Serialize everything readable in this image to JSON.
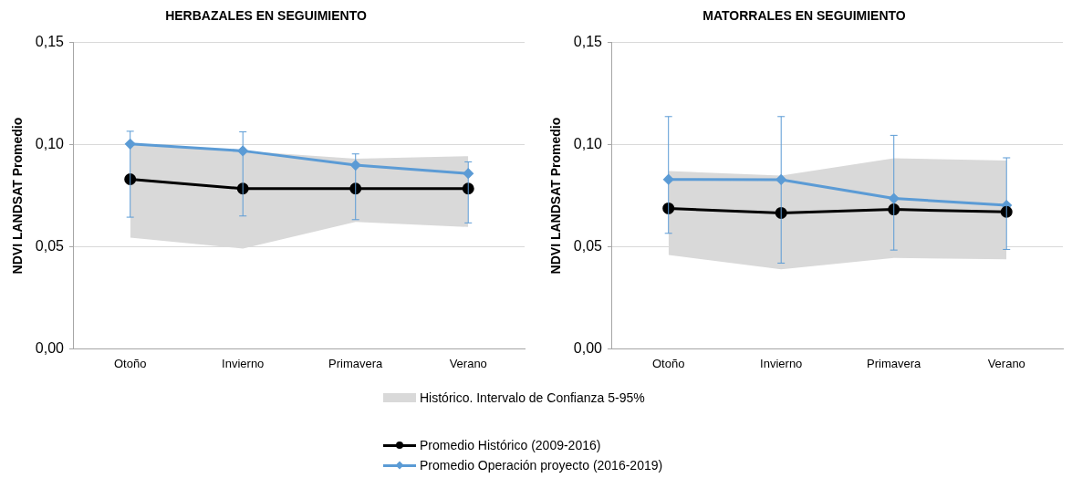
{
  "chart_data": [
    {
      "type": "line",
      "title": "HERBAZALES EN SEGUIMIENTO",
      "ylabel": "NDVI LANDSAT Promedio",
      "categories": [
        "Otoño",
        "Invierno",
        "Primavera",
        "Verano"
      ],
      "ylim": [
        0,
        0.15
      ],
      "yticks": [
        {
          "value": 0,
          "label": "0,00"
        },
        {
          "value": 0.05,
          "label": "0,05"
        },
        {
          "value": 0.1,
          "label": "0,10"
        },
        {
          "value": 0.15,
          "label": "0,15"
        }
      ],
      "grid": "y",
      "legend": "bottom",
      "annotations": [
        "Histórico. Intervalo de Confianza 5-95%"
      ],
      "series": [
        {
          "name": "Promedio Histórico (2009-2016)",
          "color": "#000000",
          "marker": "circle",
          "values": [
            0.0831,
            0.0785,
            0.0785,
            0.0785
          ],
          "lower": [
            0.0545,
            0.0491,
            0.0622,
            0.0597
          ],
          "upper": [
            0.1002,
            0.097,
            0.0932,
            0.0944
          ]
        },
        {
          "name": "Promedio Operación proyecto (2016-2019)",
          "color": "#5b9bd5",
          "marker": "diamond",
          "values": [
            0.1004,
            0.097,
            0.09,
            0.0859
          ],
          "errors": [
            [
              0.0645,
              0.1066
            ],
            [
              0.0651,
              0.1063
            ],
            [
              0.0633,
              0.0955
            ],
            [
              0.0617,
              0.0916
            ]
          ]
        }
      ]
    },
    {
      "type": "line",
      "title": "MATORRALES EN SEGUIMIENTO",
      "ylabel": "NDVI LANDSAT Promedio",
      "categories": [
        "Otoño",
        "Invierno",
        "Primavera",
        "Verano"
      ],
      "ylim": [
        0,
        0.15
      ],
      "yticks": [
        {
          "value": 0,
          "label": "0,00"
        },
        {
          "value": 0.05,
          "label": "0,05"
        },
        {
          "value": 0.1,
          "label": "0,10"
        },
        {
          "value": 0.15,
          "label": "0,15"
        }
      ],
      "grid": "y",
      "series": [
        {
          "color": "#000000",
          "marker": "circle",
          "values": [
            0.0688,
            0.0666,
            0.0683,
            0.0671
          ],
          "lower": [
            0.046,
            0.039,
            0.0445,
            0.0439
          ],
          "upper": [
            0.0871,
            0.0849,
            0.0934,
            0.0922
          ]
        },
        {
          "color": "#5b9bd5",
          "marker": "diamond",
          "values": [
            0.083,
            0.0829,
            0.0737,
            0.0703
          ],
          "errors": [
            [
              0.0566,
              0.1138
            ],
            [
              0.042,
              0.1138
            ],
            [
              0.0484,
              0.1046
            ],
            [
              0.0487,
              0.0936
            ]
          ]
        }
      ]
    }
  ]
}
